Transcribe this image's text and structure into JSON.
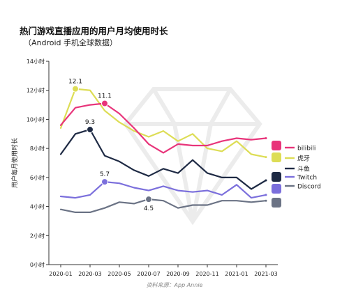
{
  "title": "热门游戏直播应用的用户月均使用时长",
  "subtitle": "（Android 手机全球数据）",
  "source": "资料来源：App Annie",
  "chart_data": {
    "type": "line",
    "ylabel": "用户每月使用时长",
    "ylim": [
      0,
      14
    ],
    "yticks": [
      "0小时",
      "2小时",
      "4小时",
      "6小时",
      "8小时",
      "10小时",
      "12小时",
      "14小时"
    ],
    "x": [
      "2020-01",
      "2020-02",
      "2020-03",
      "2020-04",
      "2020-05",
      "2020-06",
      "2020-07",
      "2020-08",
      "2020-09",
      "2020-10",
      "2020-11",
      "2020-12",
      "2021-01",
      "2021-02",
      "2021-03"
    ],
    "xticks": [
      "2020-01",
      "2020-03",
      "2020-05",
      "2020-07",
      "2020-09",
      "2020-11",
      "2021-01",
      "2021-03"
    ],
    "series": [
      {
        "name": "bilibili",
        "color": "#e8347a",
        "icon": "bilibili-icon",
        "values": [
          9.6,
          10.8,
          11.0,
          11.1,
          10.4,
          9.4,
          8.3,
          7.7,
          8.3,
          8.2,
          8.2,
          8.5,
          8.7,
          8.6,
          8.7
        ]
      },
      {
        "name": "虎牙",
        "color": "#dddd55",
        "icon": "huya-icon",
        "values": [
          9.4,
          12.1,
          12.0,
          10.6,
          9.8,
          9.2,
          8.8,
          9.2,
          8.5,
          9.0,
          8.0,
          7.8,
          8.5,
          7.6,
          7.4
        ]
      },
      {
        "name": "斗鱼",
        "color": "#1e2a44",
        "icon": "douyu-icon",
        "values": [
          7.6,
          9.0,
          9.3,
          7.5,
          7.1,
          6.5,
          6.1,
          6.6,
          6.3,
          7.2,
          6.3,
          6.0,
          6.0,
          5.2,
          5.8
        ]
      },
      {
        "name": "Twitch",
        "color": "#7b6fdc",
        "icon": "twitch-icon",
        "values": [
          4.7,
          4.6,
          4.8,
          5.7,
          5.6,
          5.3,
          5.1,
          5.4,
          5.1,
          5.0,
          5.1,
          4.8,
          5.5,
          4.6,
          4.8
        ]
      },
      {
        "name": "Discord",
        "color": "#6b7385",
        "icon": "discord-icon",
        "values": [
          3.8,
          3.6,
          3.6,
          3.9,
          4.3,
          4.2,
          4.5,
          4.4,
          3.9,
          4.1,
          4.1,
          4.4,
          4.4,
          4.3,
          4.4
        ]
      }
    ],
    "annotations": [
      {
        "series": "虎牙",
        "x": "2020-02",
        "label": "12.1"
      },
      {
        "series": "bilibili",
        "x": "2020-04",
        "label": "11.1"
      },
      {
        "series": "斗鱼",
        "x": "2020-03",
        "label": "9.3"
      },
      {
        "series": "Twitch",
        "x": "2020-04",
        "label": "5.7"
      },
      {
        "series": "Discord",
        "x": "2020-07",
        "label": "4.5"
      }
    ],
    "legend_position": "right",
    "grid": false
  }
}
